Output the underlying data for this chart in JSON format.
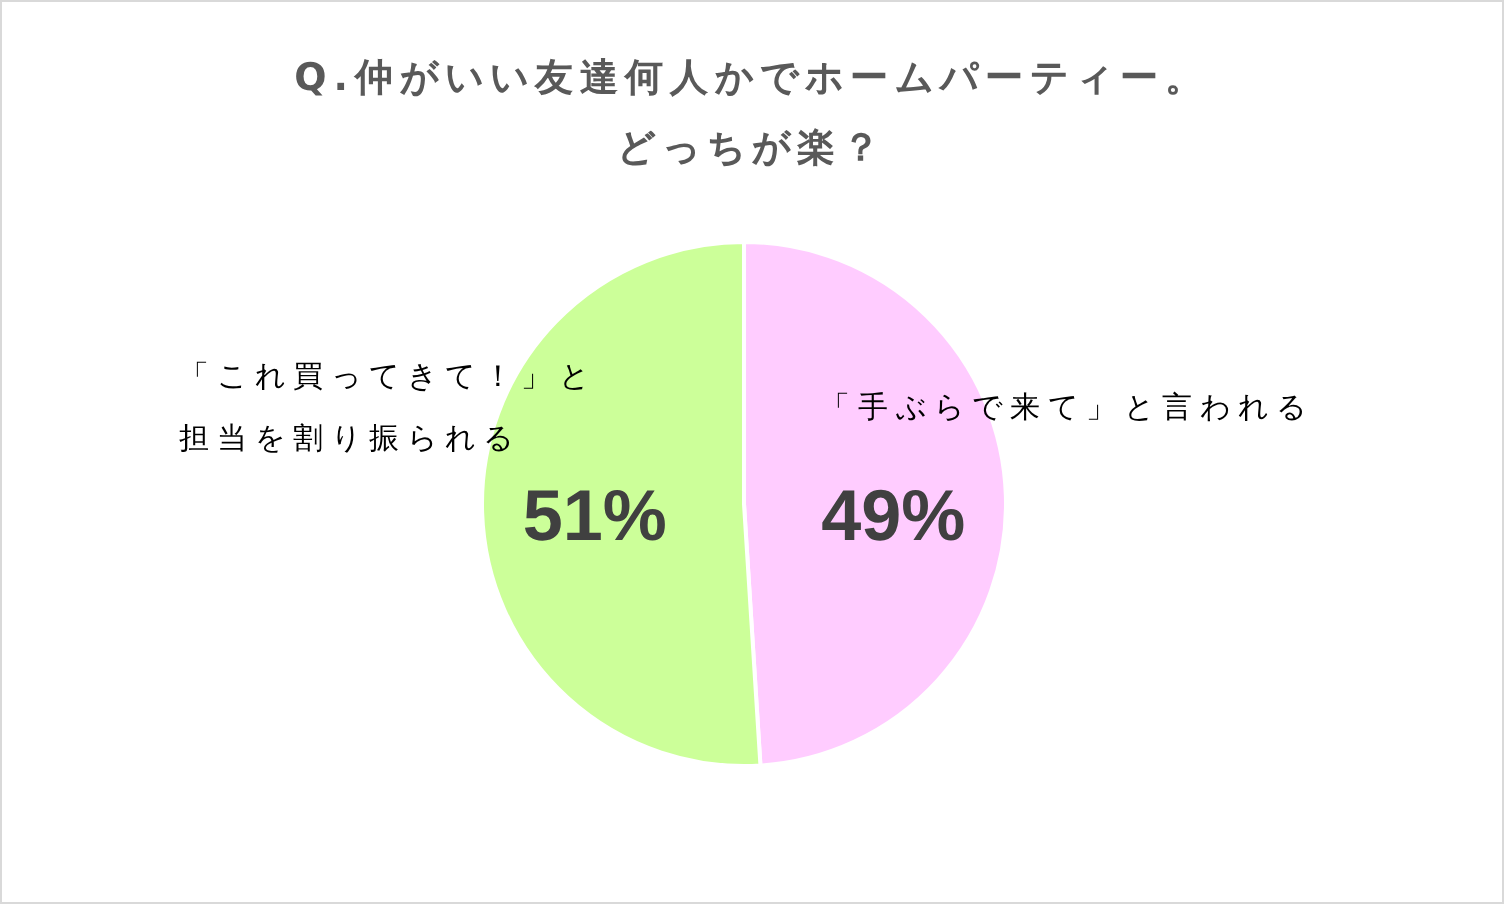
{
  "chart_data": {
    "type": "pie",
    "title": "Q.仲がいい友達何人かでホームパーティー。どっちが楽？",
    "categories": [
      "「手ぶらで来て」と言われる",
      "「これ買ってきて！」と担当を割り振られる"
    ],
    "values": [
      49,
      51
    ],
    "colors": [
      "#ffccff",
      "#ccff99"
    ],
    "value_labels": [
      "49%",
      "51%"
    ],
    "legend": false
  }
}
